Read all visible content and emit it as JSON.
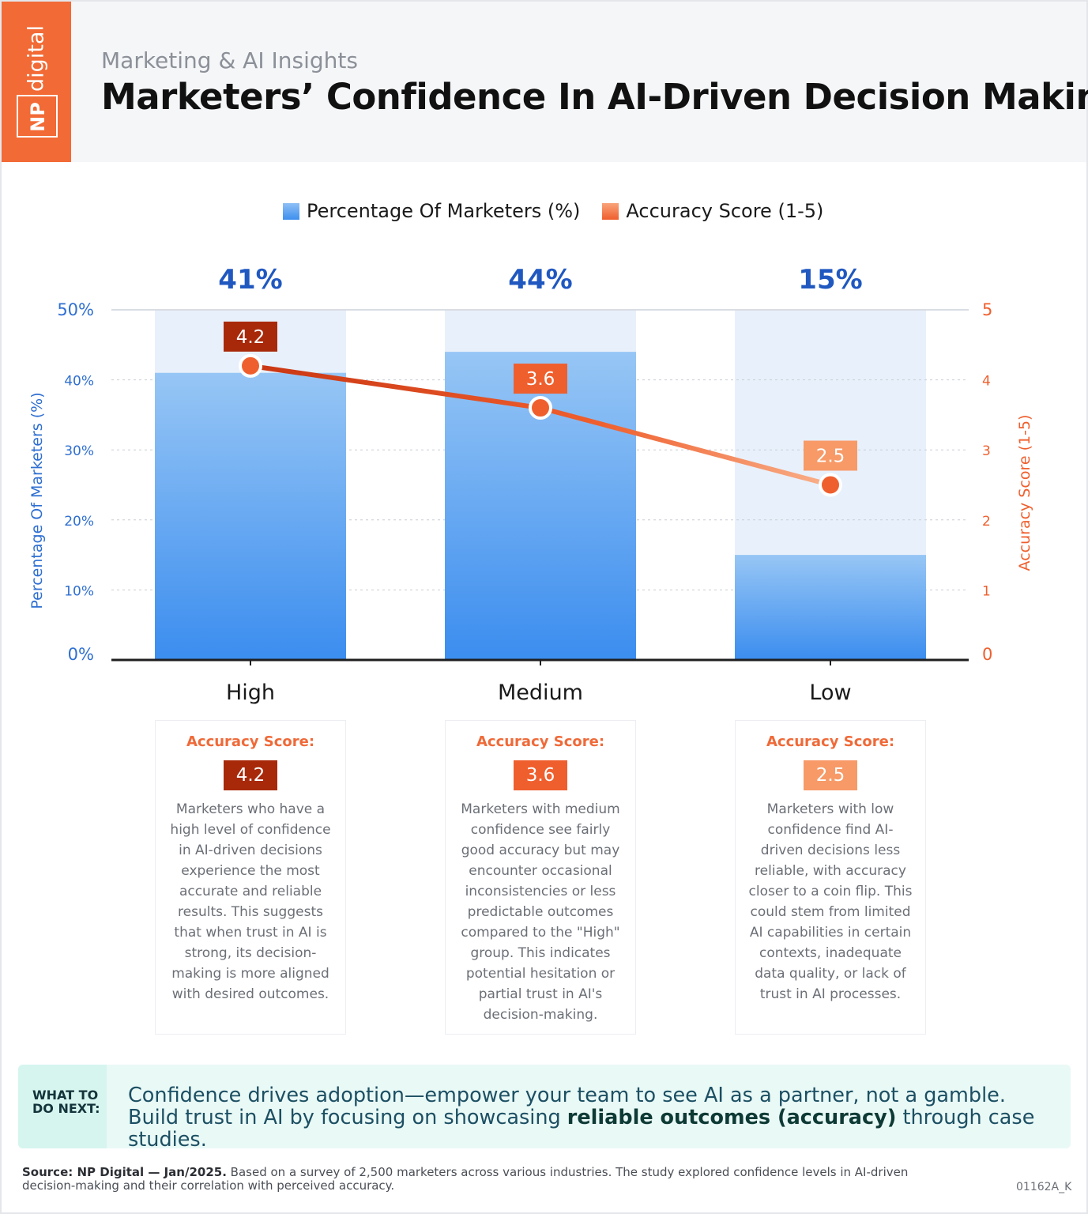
{
  "brand": {
    "np": "NP",
    "digital": "digital",
    "logo_color": "#f26a35"
  },
  "header": {
    "subtitle": "Marketing & AI Insights",
    "title": "Marketers’ Confidence In AI-Driven Decision Making"
  },
  "legend": {
    "items": [
      {
        "label": "Percentage Of Marketers (%)",
        "color": "#3d8fee"
      },
      {
        "label": "Accuracy Score (1-5)",
        "color": "#ef5f2e"
      }
    ]
  },
  "chart_data": {
    "type": "bar",
    "categories": [
      "High",
      "Medium",
      "Low"
    ],
    "series": [
      {
        "name": "Percentage Of Marketers (%)",
        "values": [
          41,
          44,
          15
        ],
        "axis": "left",
        "color": "#3d8fee"
      },
      {
        "name": "Accuracy Score (1-5)",
        "values": [
          4.2,
          3.6,
          2.5
        ],
        "axis": "right",
        "mark": "line",
        "color": "#ef5f2e"
      }
    ],
    "value_labels": [
      "41%",
      "44%",
      "15%"
    ],
    "score_labels": [
      "4.2",
      "3.6",
      "2.5"
    ],
    "ylabel": "Percentage Of Marketers (%)",
    "ylabel_right": "Accuracy Score (1-5)",
    "ylim": [
      0,
      50
    ],
    "ylim_right": [
      0,
      5
    ],
    "yticks": [
      "0%",
      "10%",
      "20%",
      "30%",
      "40%",
      "50%"
    ],
    "yticks_right": [
      "0",
      "1",
      "2",
      "3",
      "4",
      "5"
    ],
    "grid": true,
    "legend": "top-center"
  },
  "cards": [
    {
      "label": "Accuracy Score:",
      "score": "4.2",
      "score_color": "#a8290a",
      "lines": [
        "Marketers who have a",
        "high level of confidence",
        "in AI-driven decisions",
        "experience the most",
        "accurate and reliable",
        "results. This suggests",
        "that when trust in AI is",
        "strong, its decision-",
        "making is more aligned",
        "with desired outcomes."
      ]
    },
    {
      "label": "Accuracy Score:",
      "score": "3.6",
      "score_color": "#ef5f2e",
      "lines": [
        "Marketers with medium",
        "confidence see fairly",
        "good accuracy but may",
        "encounter occasional",
        "inconsistencies or less",
        "predictable outcomes",
        "compared to the \"High\"",
        "group. This indicates",
        "potential hesitation or",
        "partial trust in AI's",
        "decision-making."
      ]
    },
    {
      "label": "Accuracy Score:",
      "score": "2.5",
      "score_color": "#f79a68",
      "lines": [
        "Marketers with low",
        "confidence find AI-",
        "driven decisions less",
        "reliable, with accuracy",
        "closer to a coin flip. This",
        "could stem from limited",
        "AI capabilities in certain",
        "contexts, inadequate",
        "data quality, or lack of",
        "trust in AI processes."
      ]
    }
  ],
  "cta": {
    "tag_line1": "WHAT TO",
    "tag_line2": "DO NEXT:",
    "text_before": "Confidence drives adoption—empower your team to see AI as a partner, not a gamble. Build trust in AI by focusing on showcasing ",
    "text_bold": "reliable outcomes (accuracy)",
    "text_after": " through case studies."
  },
  "footer": {
    "source_bold": "Source:  NP Digital — Jan/2025.",
    "source_text": " Based on a survey of 2,500 marketers across various industries. The study explored confidence levels in AI-driven decision-making and their correlation with perceived accuracy.",
    "code": "01162A_K"
  }
}
